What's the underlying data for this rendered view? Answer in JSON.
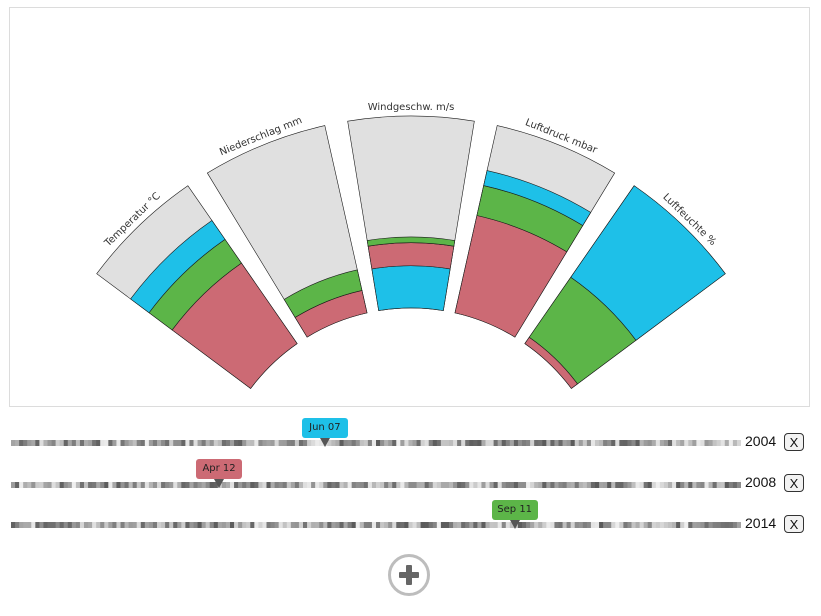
{
  "chart_data": {
    "type": "radial-stacked-bar",
    "categories": [
      {
        "label": "Temperatur °C"
      },
      {
        "label": "Niederschlag mm"
      },
      {
        "label": "Windgeschw. m/s"
      },
      {
        "label": "Luftdruck mbar"
      },
      {
        "label": "Luftfeuchte %"
      }
    ],
    "series": [
      {
        "name": "2004 (Jun 07)",
        "color": "#1ec0e8",
        "values": [
          0.12,
          0.0,
          0.22,
          0.08,
          0.58
        ]
      },
      {
        "name": "2008 (Apr 12)",
        "color": "#cc6a74",
        "values": [
          0.51,
          0.12,
          0.12,
          0.52,
          0.04
        ]
      },
      {
        "name": "2014 (Sep 11)",
        "color": "#5cb548",
        "values": [
          0.15,
          0.11,
          0.03,
          0.16,
          0.38
        ]
      }
    ],
    "background_color": "#e0e0e0"
  },
  "timelines": [
    {
      "year": "2004",
      "marker_label": "Jun 07",
      "marker_color": "#1ec0e8",
      "position": 0.43,
      "remove_label": "X"
    },
    {
      "year": "2008",
      "marker_label": "Apr 12",
      "marker_color": "#cc6a74",
      "position": 0.285,
      "remove_label": "X"
    },
    {
      "year": "2014",
      "marker_label": "Sep 11",
      "marker_color": "#5cb548",
      "position": 0.69,
      "remove_label": "X"
    }
  ],
  "add_button": {
    "icon": "plus-icon"
  }
}
